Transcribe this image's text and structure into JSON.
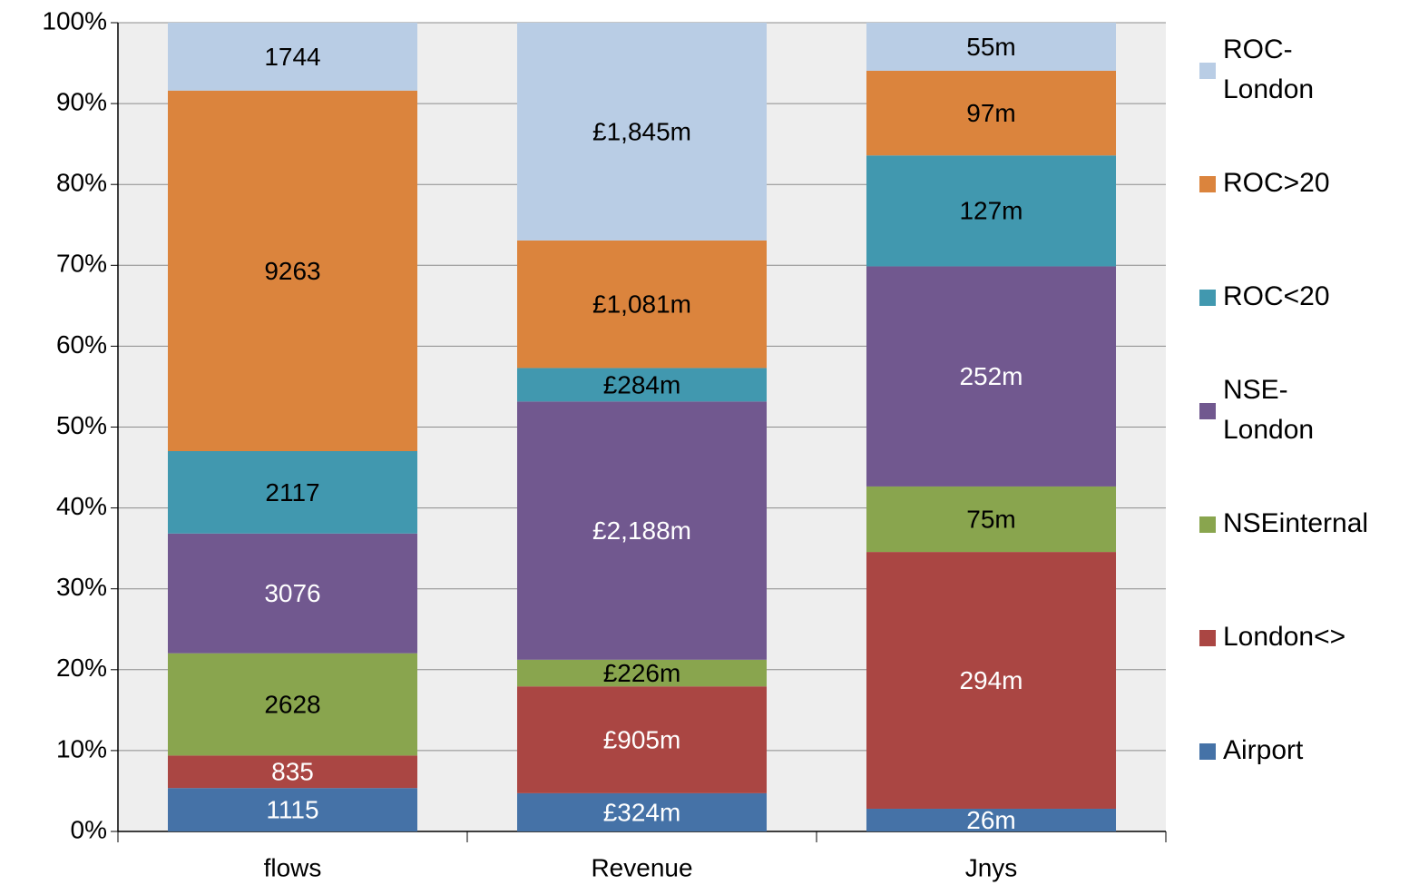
{
  "chart_data": {
    "type": "bar",
    "stacking": "percent",
    "categories": [
      "flows",
      "Revenue",
      "Jnys"
    ],
    "ylim": [
      0,
      100
    ],
    "yticks": [
      {
        "value": 0,
        "label": "0%"
      },
      {
        "value": 10,
        "label": "10%"
      },
      {
        "value": 20,
        "label": "20%"
      },
      {
        "value": 30,
        "label": "30%"
      },
      {
        "value": 40,
        "label": "40%"
      },
      {
        "value": 50,
        "label": "50%"
      },
      {
        "value": 60,
        "label": "60%"
      },
      {
        "value": 70,
        "label": "70%"
      },
      {
        "value": 80,
        "label": "80%"
      },
      {
        "value": 90,
        "label": "90%"
      },
      {
        "value": 100,
        "label": "100%"
      }
    ],
    "grid": true,
    "legend": "right",
    "series": [
      {
        "name": "Airport",
        "color": "#4572a7",
        "label_color": "#ffffff",
        "values": [
          1115,
          324,
          26
        ],
        "value_labels": [
          "1115",
          "£324m",
          "26m"
        ]
      },
      {
        "name": "London<>",
        "color": "#aa4643",
        "label_color": "#ffffff",
        "values": [
          835,
          905,
          294
        ],
        "value_labels": [
          "835",
          "£905m",
          "294m"
        ]
      },
      {
        "name": "NSEinternal",
        "color": "#89a54e",
        "label_color": "#000000",
        "values": [
          2628,
          226,
          75
        ],
        "value_labels": [
          "2628",
          "£226m",
          "75m"
        ]
      },
      {
        "name": "NSE-London",
        "color": "#71588f",
        "label_color": "#ffffff",
        "values": [
          3076,
          2188,
          252
        ],
        "value_labels": [
          "3076",
          "£2,188m",
          "252m"
        ]
      },
      {
        "name": "ROC<20",
        "color": "#4198af",
        "label_color": "#000000",
        "values": [
          2117,
          284,
          127
        ],
        "value_labels": [
          "2117",
          "£284m",
          "127m"
        ]
      },
      {
        "name": "ROC>20",
        "color": "#db843d",
        "label_color": "#000000",
        "values": [
          9263,
          1081,
          97
        ],
        "value_labels": [
          "9263",
          "£1,081m",
          "97m"
        ]
      },
      {
        "name": "ROC-London",
        "color": "#b9cde5",
        "label_color": "#000000",
        "values": [
          1744,
          1845,
          55
        ],
        "value_labels": [
          "1744",
          "£1,845m",
          "55m"
        ]
      }
    ]
  }
}
